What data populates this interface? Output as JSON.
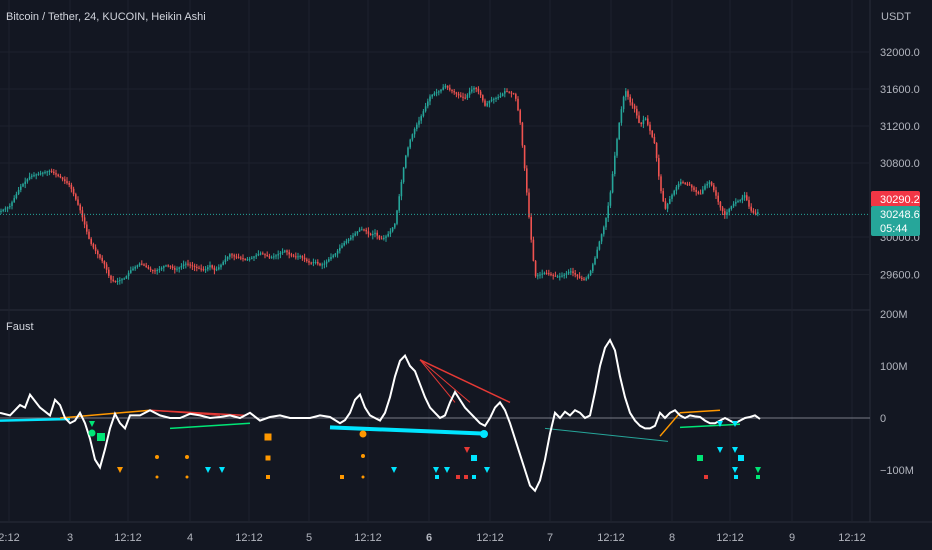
{
  "header": {
    "symbol_title": "Bitcoin / Tether, 24, KUCOIN, Heikin Ashi",
    "currency": "USDT"
  },
  "indicator": {
    "name": "Faust"
  },
  "price_tags": {
    "last_price": "30290.2",
    "current_price": "30248.6",
    "countdown": "05:44",
    "last_price_color": "#f23645",
    "current_price_color": "#26a69a"
  },
  "colors": {
    "background": "#131722",
    "up_candle": "#26a69a",
    "down_candle": "#ef5350",
    "oscillator": "#ffffff",
    "cyan_divergence": "#00e5ff",
    "red_divergence": "#e53935",
    "orange_divergence": "#ff9800",
    "green_divergence": "#00e676"
  },
  "chart_data": [
    {
      "type": "candlestick",
      "title": "Bitcoin / Tether, 24, KUCOIN, Heikin Ashi",
      "ylabel": "USDT",
      "ylim": [
        29400,
        32200
      ],
      "yticks": [
        "32000.0",
        "31600.0",
        "31200.0",
        "30800.0",
        "30000.0",
        "29600.0"
      ],
      "xticks": [
        "2:12",
        "3",
        "12:12",
        "4",
        "12:12",
        "5",
        "12:12",
        "6",
        "12:12",
        "7",
        "12:12",
        "8",
        "12:12",
        "9",
        "12:12"
      ],
      "price_path": {
        "x": [
          0,
          10,
          20,
          30,
          40,
          50,
          60,
          70,
          80,
          90,
          100,
          105,
          110,
          115,
          120,
          125,
          130,
          135,
          140,
          145,
          150,
          155,
          160,
          165,
          170,
          175,
          180,
          185,
          190,
          195,
          200,
          205,
          210,
          215,
          220,
          225,
          230,
          235,
          240,
          245,
          250,
          255,
          260,
          265,
          270,
          275,
          280,
          285,
          290,
          295,
          300,
          305,
          310,
          315,
          320,
          325,
          330,
          335,
          340,
          345,
          350,
          355,
          360,
          365,
          370,
          375,
          380,
          385,
          390,
          395,
          400,
          405,
          410,
          415,
          420,
          425,
          430,
          435,
          440,
          445,
          450,
          455,
          460,
          465,
          470,
          475,
          480,
          485,
          490,
          495,
          500,
          505,
          510,
          515,
          520,
          525,
          530,
          535,
          540,
          545,
          550,
          555,
          560,
          565,
          570,
          575,
          580,
          585,
          590,
          595,
          600,
          605,
          610,
          615,
          620,
          625,
          630,
          635,
          640,
          645,
          650,
          655,
          660,
          665,
          670,
          675,
          680,
          685,
          690,
          695,
          700,
          705,
          710,
          715,
          720,
          725,
          730,
          735,
          740,
          745,
          750,
          755,
          760
        ],
        "y": [
          30280,
          30340,
          30540,
          30660,
          30690,
          30720,
          30650,
          30560,
          30300,
          29950,
          29780,
          29700,
          29550,
          29520,
          29540,
          29560,
          29640,
          29680,
          29720,
          29690,
          29650,
          29640,
          29660,
          29700,
          29690,
          29650,
          29680,
          29720,
          29700,
          29680,
          29660,
          29650,
          29700,
          29640,
          29690,
          29760,
          29820,
          29790,
          29780,
          29760,
          29770,
          29800,
          29830,
          29810,
          29780,
          29800,
          29830,
          29860,
          29810,
          29790,
          29800,
          29760,
          29720,
          29740,
          29700,
          29720,
          29780,
          29820,
          29890,
          29950,
          29990,
          30040,
          30090,
          30080,
          30020,
          30050,
          29980,
          30000,
          30060,
          30150,
          30500,
          30850,
          31050,
          31180,
          31280,
          31400,
          31520,
          31560,
          31580,
          31640,
          31590,
          31560,
          31520,
          31500,
          31580,
          31620,
          31550,
          31420,
          31480,
          31500,
          31520,
          31580,
          31560,
          31540,
          31260,
          30700,
          30100,
          29580,
          29600,
          29620,
          29600,
          29580,
          29580,
          29600,
          29640,
          29600,
          29560,
          29540,
          29620,
          29780,
          29980,
          30150,
          30450,
          30900,
          31300,
          31600,
          31460,
          31380,
          31200,
          31300,
          31150,
          31000,
          30550,
          30300,
          30420,
          30520,
          30600,
          30580,
          30560,
          30500,
          30460,
          30560,
          30600,
          30480,
          30330,
          30240,
          30320,
          30380,
          30400,
          30460,
          30300,
          30250,
          30290
        ]
      }
    },
    {
      "type": "line",
      "title": "Faust",
      "ylim": [
        -150,
        220
      ],
      "yticks": [
        "200M",
        "100M",
        "0",
        "−100M"
      ],
      "series": [
        {
          "x": [
            0,
            10,
            20,
            25,
            30,
            40,
            50,
            55,
            60,
            65,
            70,
            75,
            80,
            85,
            90,
            95,
            100,
            105,
            110,
            115,
            120,
            125,
            130,
            140,
            150,
            160,
            170,
            180,
            190,
            200,
            210,
            220,
            230,
            240,
            250,
            260,
            270,
            280,
            290,
            300,
            310,
            320,
            330,
            340,
            345,
            350,
            355,
            360,
            365,
            370,
            375,
            380,
            385,
            390,
            395,
            400,
            405,
            410,
            415,
            420,
            425,
            430,
            435,
            440,
            445,
            450,
            455,
            460,
            465,
            470,
            475,
            480,
            485,
            490,
            495,
            500,
            505,
            510,
            515,
            520,
            525,
            530,
            535,
            540,
            545,
            550,
            555,
            560,
            565,
            570,
            575,
            580,
            585,
            590,
            595,
            600,
            605,
            610,
            615,
            620,
            625,
            630,
            635,
            640,
            645,
            650,
            655,
            660,
            665,
            670,
            675,
            680,
            685,
            690,
            695,
            700,
            705,
            710,
            715,
            720,
            725,
            730,
            735,
            740,
            745,
            750,
            755,
            760
          ],
          "y": [
            10,
            5,
            25,
            20,
            45,
            20,
            5,
            35,
            25,
            0,
            -10,
            -5,
            10,
            -10,
            -40,
            -80,
            -95,
            -60,
            -20,
            8,
            -10,
            -20,
            5,
            5,
            15,
            5,
            0,
            0,
            8,
            5,
            0,
            2,
            5,
            0,
            10,
            -5,
            2,
            5,
            0,
            0,
            0,
            5,
            2,
            -10,
            -4,
            10,
            35,
            45,
            20,
            5,
            0,
            -5,
            10,
            40,
            80,
            110,
            120,
            100,
            90,
            65,
            40,
            20,
            10,
            0,
            5,
            30,
            50,
            35,
            20,
            10,
            0,
            -10,
            -15,
            0,
            20,
            30,
            15,
            -10,
            -40,
            -70,
            -100,
            -130,
            -140,
            -120,
            -80,
            -30,
            10,
            0,
            12,
            5,
            15,
            10,
            0,
            5,
            50,
            100,
            135,
            150,
            130,
            80,
            40,
            10,
            -5,
            -15,
            -20,
            -20,
            -15,
            10,
            0,
            10,
            15,
            5,
            0,
            5,
            3,
            2,
            -5,
            -10,
            -10,
            -5,
            0,
            -5,
            -10,
            -5,
            0,
            2,
            5,
            -2
          ]
        }
      ]
    }
  ]
}
